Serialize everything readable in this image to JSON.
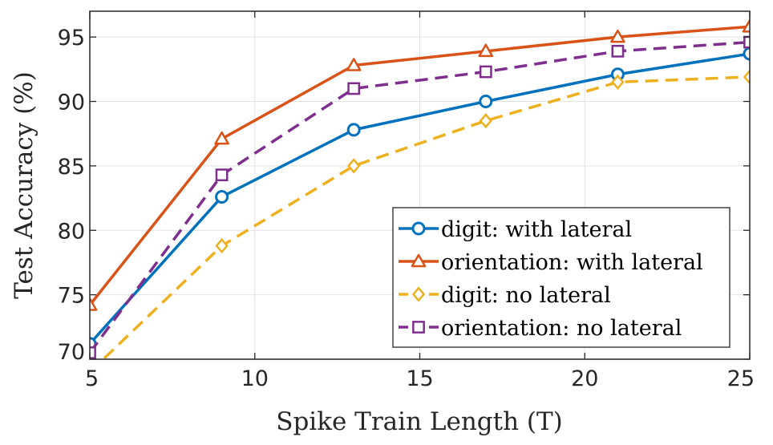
{
  "chart_data": {
    "type": "line",
    "xlabel": "Spike Train Length (T)",
    "ylabel": "Test Accuracy (%)",
    "xlim": [
      5,
      25
    ],
    "ylim": [
      70,
      97
    ],
    "xticks": [
      "5",
      "10",
      "15",
      "20",
      "25"
    ],
    "yticks": [
      "70",
      "75",
      "80",
      "85",
      "90",
      "95"
    ],
    "grid": true,
    "legend_position": "bottom-right",
    "x": [
      5,
      9,
      13,
      17,
      21,
      25
    ],
    "series": [
      {
        "name": "digit: with lateral",
        "values": [
          71.2,
          82.6,
          87.8,
          90.0,
          92.1,
          93.7
        ],
        "color": "#0072BD",
        "marker": "circle",
        "dash": "solid"
      },
      {
        "name": "orientation: with lateral",
        "values": [
          74.2,
          87.1,
          92.8,
          93.9,
          95.0,
          95.8
        ],
        "color": "#D95319",
        "marker": "triangle",
        "dash": "solid"
      },
      {
        "name": "digit: no lateral",
        "values": [
          69.0,
          78.8,
          85.0,
          88.5,
          91.5,
          91.9
        ],
        "color": "#EDB120",
        "marker": "diamond",
        "dash": "dashed"
      },
      {
        "name": "orientation: no lateral",
        "values": [
          70.5,
          84.3,
          91.0,
          92.3,
          93.9,
          94.6
        ],
        "color": "#7E2F8E",
        "marker": "square",
        "dash": "dashed"
      }
    ]
  }
}
